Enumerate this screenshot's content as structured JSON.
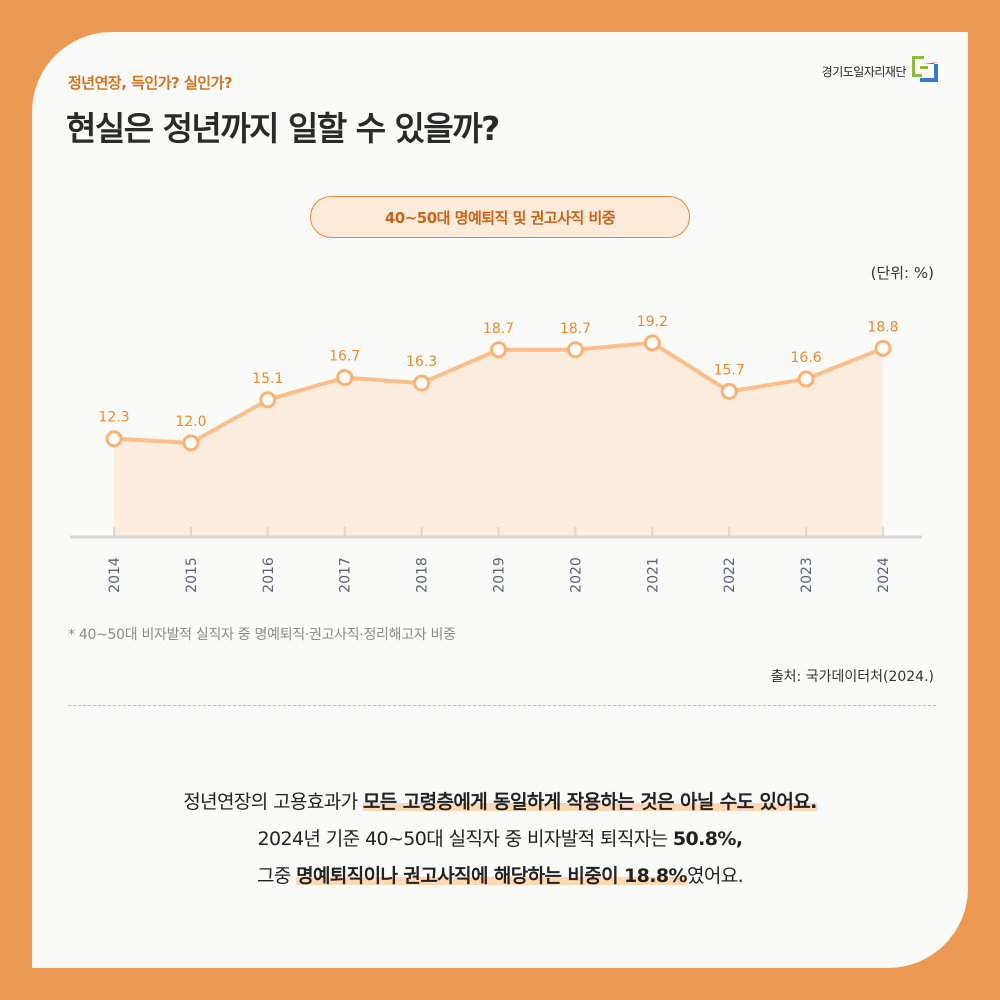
{
  "header": {
    "kicker": "정년연장, 득인가? 실인가?",
    "title": "현실은 정년까지 일할 수 있을까?",
    "logo_text": "경기도일자리재단"
  },
  "chart_title_pill": "40~50대 명예퇴직 및 권고사직 비중",
  "unit_label": "(단위: %)",
  "footnote": "* 40~50대 비자발적 실직자 중 명예퇴직·권고사직·정리해고자 비중",
  "source": "출처: 국가데이터처(2024.)",
  "body": {
    "line1_plain": "정년연장의 고용효과가 ",
    "line1_highlight": "모든 고령층에게 동일하게 작용하는 것은 아닐 수도 있어요.",
    "line2_plain": "2024년 기준 40~50대 실직자 중 비자발적 퇴직자는 ",
    "line2_bold": "50.8%,",
    "line3_plain_a": "그중 ",
    "line3_highlight": "명예퇴직이나 권고사직에 해당하는 비중이 18.8%",
    "line3_plain_b": "였어요."
  },
  "colors": {
    "frame": "#EC9A53",
    "accent": "#EE8A2E",
    "line": "#FDBF8A",
    "area": "#FDE7D3",
    "axis": "#D8D8D8"
  },
  "chart_data": {
    "type": "line",
    "title": "40~50대 명예퇴직 및 권고사직 비중",
    "xlabel": "",
    "ylabel": "(단위: %)",
    "categories": [
      "2014",
      "2015",
      "2016",
      "2017",
      "2018",
      "2019",
      "2020",
      "2021",
      "2022",
      "2023",
      "2024"
    ],
    "values": [
      12.3,
      12.0,
      15.1,
      16.7,
      16.3,
      18.7,
      18.7,
      19.2,
      15.7,
      16.6,
      18.8
    ],
    "value_labels": [
      "12.3",
      "12.0",
      "15.1",
      "16.7",
      "16.3",
      "18.7",
      "18.7",
      "19.2",
      "15.7",
      "16.6",
      "18.8"
    ],
    "grid": false,
    "area_fill": true,
    "legend": "none"
  }
}
